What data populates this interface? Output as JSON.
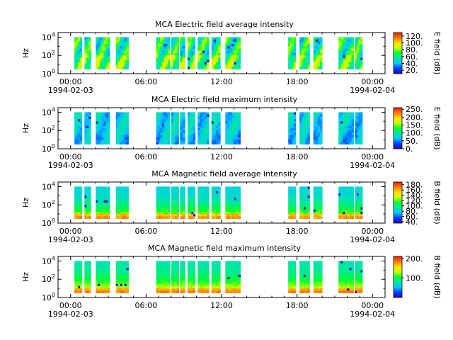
{
  "figure": {
    "date_start": "1994-02-03",
    "date_end": "1994-02-04",
    "time_tick_labels": [
      "00:00",
      "06:00",
      "12:00",
      "18:00",
      "00:00"
    ],
    "y_axis_label": "Hz"
  },
  "chart_data": [
    {
      "type": "heatmap",
      "title": "MCA  Electric field average intensity",
      "xlabel": "",
      "ylabel": "Hz",
      "x_range_hours": [
        -1,
        25
      ],
      "ylim_log10": [
        0,
        4.5
      ],
      "y_ticks": [
        "10^0",
        "10^2",
        "10^4"
      ],
      "colorbar": {
        "label": "E field (dB)",
        "ticks": [
          "20.",
          "40.",
          "60.",
          "80.",
          "100.",
          "120."
        ],
        "range": [
          10,
          130
        ]
      }
    },
    {
      "type": "heatmap",
      "title": "MCA  Electric field maximum intensity",
      "xlabel": "",
      "ylabel": "Hz",
      "x_range_hours": [
        -1,
        25
      ],
      "ylim_log10": [
        0,
        4.5
      ],
      "y_ticks": [
        "10^0",
        "10^2",
        "10^4"
      ],
      "colorbar": {
        "label": "E field (dB)",
        "ticks": [
          "0.",
          "50.",
          "100.",
          "150.",
          "200.",
          "250."
        ],
        "range": [
          0,
          260
        ]
      }
    },
    {
      "type": "heatmap",
      "title": "MCA  Magnetic field average intensity",
      "xlabel": "",
      "ylabel": "Hz",
      "x_range_hours": [
        -1,
        25
      ],
      "ylim_log10": [
        0,
        4.5
      ],
      "y_ticks": [
        "10^0",
        "10^2",
        "10^4"
      ],
      "colorbar": {
        "label": "B field (dB)",
        "ticks": [
          "40.",
          "60.",
          "80.",
          "100.",
          "120.",
          "140.",
          "160.",
          "180."
        ],
        "range": [
          35,
          190
        ]
      }
    },
    {
      "type": "heatmap",
      "title": "MCA  Magnetic field maximum intensity",
      "xlabel": "",
      "ylabel": "Hz",
      "x_range_hours": [
        -1,
        25
      ],
      "ylim_log10": [
        0,
        4.5
      ],
      "y_ticks": [
        "10^0",
        "10^2",
        "10^4"
      ],
      "colorbar": {
        "label": "B field (dB)",
        "ticks": [
          "100.",
          "200."
        ],
        "range": [
          0,
          210
        ]
      }
    }
  ],
  "data_segments_hours": [
    [
      0.3,
      0.9
    ],
    [
      1.1,
      1.6
    ],
    [
      2.0,
      3.1
    ],
    [
      3.6,
      4.6
    ],
    [
      6.8,
      7.9
    ],
    [
      8.0,
      8.6
    ],
    [
      8.7,
      9.1
    ],
    [
      9.3,
      9.9
    ],
    [
      10.1,
      11.0
    ],
    [
      11.2,
      11.9
    ],
    [
      12.3,
      13.5
    ],
    [
      17.3,
      17.9
    ],
    [
      18.2,
      19.0
    ],
    [
      19.3,
      20.0
    ],
    [
      21.3,
      22.5
    ],
    [
      22.6,
      23.2
    ]
  ],
  "palette_stops": [
    "#2b00c8",
    "#0040ff",
    "#00c8ff",
    "#00e8a0",
    "#00ff30",
    "#c8ff00",
    "#ffe000",
    "#ff7800",
    "#e61e00"
  ]
}
